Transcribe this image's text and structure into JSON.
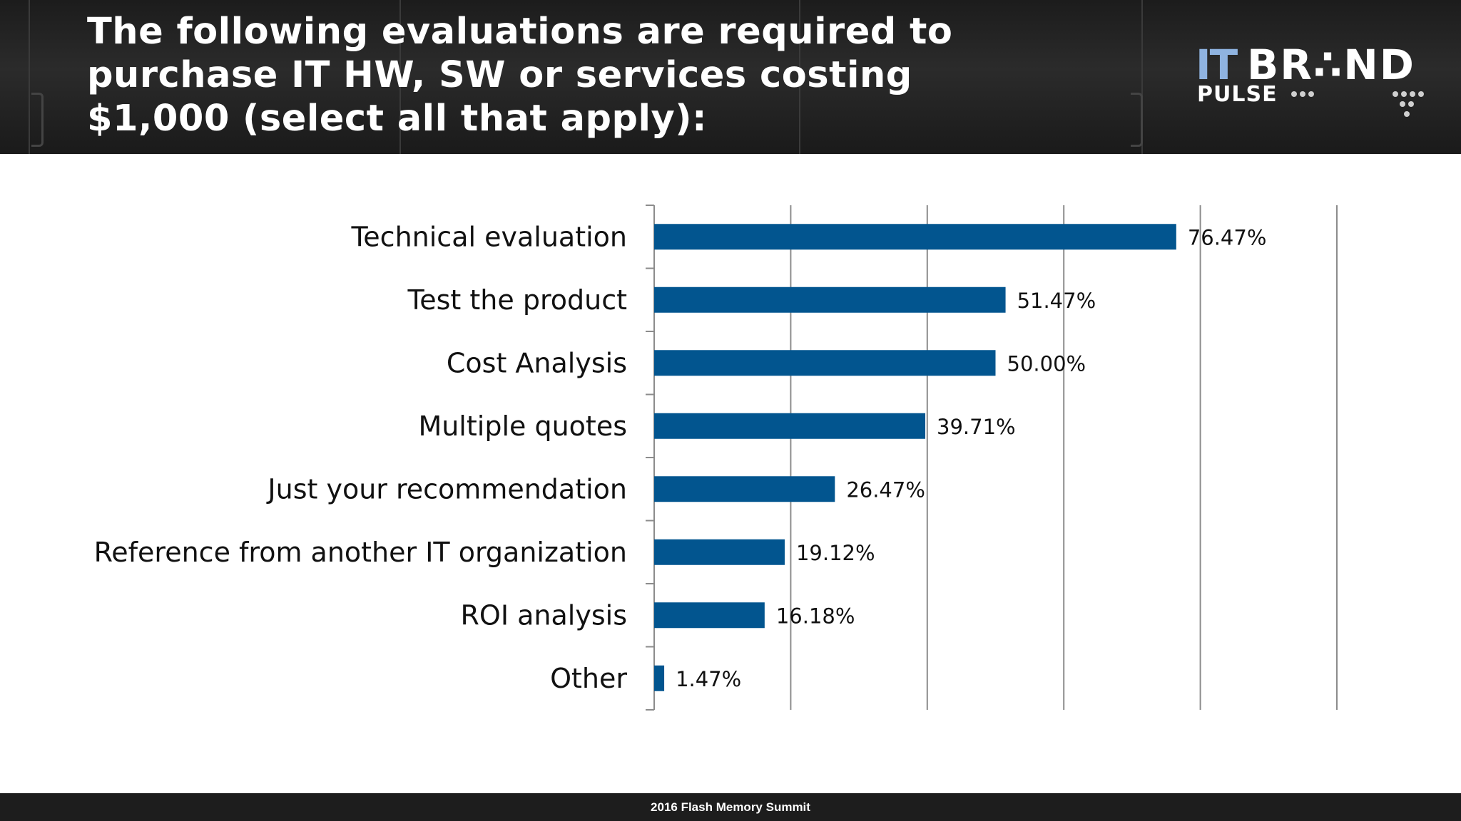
{
  "slide": {
    "title": "The following evaluations are required to\npurchase IT HW, SW or services costing\n$1,000 (select all that apply):",
    "footer": "2016 Flash Memory Summit"
  },
  "logo": {
    "it": "IT",
    "brand": "BR∴ND",
    "pulse": "PULSE"
  },
  "colors": {
    "bar": "#02558f",
    "grid": "#8c8c8c",
    "header_bg": "#222222",
    "logo_accent": "#8fb3e0"
  },
  "chart_data": {
    "type": "bar",
    "orientation": "horizontal",
    "categories": [
      "Technical evaluation",
      "Test the product",
      "Cost Analysis",
      "Multiple quotes",
      "Just your recommendation",
      "Reference from another IT organization",
      "ROI analysis",
      "Other"
    ],
    "values": [
      76.47,
      51.47,
      50.0,
      39.71,
      26.47,
      19.12,
      16.18,
      1.47
    ],
    "data_labels": [
      "76.47%",
      "51.47%",
      "50.00%",
      "39.71%",
      "26.47%",
      "19.12%",
      "16.18%",
      "1.47%"
    ],
    "xlim": [
      0,
      100
    ],
    "grid": true,
    "legend": "none",
    "title": "",
    "xlabel": "",
    "ylabel": ""
  }
}
